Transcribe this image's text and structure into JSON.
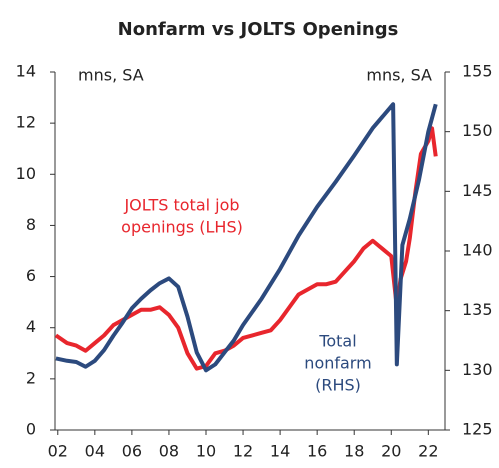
{
  "chart_data": {
    "type": "line",
    "title": "Nonfarm vs JOLTS Openings",
    "annotations": [
      {
        "text": "mns, SA",
        "axis": "y"
      },
      {
        "text": "mns, SA",
        "axis": "y2"
      },
      {
        "lines": [
          "JOLTS total job",
          "openings (LHS)"
        ],
        "color": "#e8262d"
      },
      {
        "lines": [
          "Total",
          "nonfarm",
          "(RHS)"
        ],
        "color": "#2c4a7e"
      }
    ],
    "xlim": [
      2001.85,
      2022.9
    ],
    "xticks": [
      {
        "value": 2002,
        "label": "02"
      },
      {
        "value": 2004,
        "label": "04"
      },
      {
        "value": 2006,
        "label": "06"
      },
      {
        "value": 2008,
        "label": "08"
      },
      {
        "value": 2010,
        "label": "10"
      },
      {
        "value": 2012,
        "label": "12"
      },
      {
        "value": 2014,
        "label": "14"
      },
      {
        "value": 2016,
        "label": "16"
      },
      {
        "value": 2018,
        "label": "18"
      },
      {
        "value": 2020,
        "label": "20"
      },
      {
        "value": 2022,
        "label": "22"
      }
    ],
    "ylim": [
      0,
      14
    ],
    "yticks": [
      0,
      2,
      4,
      6,
      8,
      10,
      12,
      14
    ],
    "y2lim": [
      125,
      155
    ],
    "y2ticks": [
      125,
      130,
      135,
      140,
      145,
      150,
      155
    ],
    "series": [
      {
        "name": "JOLTS total job openings",
        "color": "#e8262d",
        "axis": "y",
        "x": [
          2001.9,
          2002.5,
          2003,
          2003.5,
          2004,
          2004.5,
          2005,
          2005.5,
          2006,
          2006.5,
          2007,
          2007.5,
          2008,
          2008.5,
          2009,
          2009.5,
          2010,
          2010.5,
          2011,
          2011.5,
          2012,
          2012.5,
          2013,
          2013.5,
          2014,
          2014.5,
          2015,
          2015.5,
          2016,
          2016.5,
          2017,
          2017.5,
          2018,
          2018.5,
          2019,
          2019.5,
          2020,
          2020.3,
          2020.5,
          2020.8,
          2021,
          2021.3,
          2021.6,
          2022,
          2022.2,
          2022.4
        ],
        "values": [
          3.7,
          3.4,
          3.3,
          3.1,
          3.4,
          3.7,
          4.1,
          4.3,
          4.5,
          4.7,
          4.7,
          4.8,
          4.5,
          4.0,
          3.0,
          2.4,
          2.5,
          3.0,
          3.1,
          3.3,
          3.6,
          3.7,
          3.8,
          3.9,
          4.3,
          4.8,
          5.3,
          5.5,
          5.7,
          5.7,
          5.8,
          6.2,
          6.6,
          7.1,
          7.4,
          7.1,
          6.8,
          4.8,
          5.9,
          6.6,
          7.5,
          9.3,
          10.8,
          11.3,
          11.8,
          10.7
        ]
      },
      {
        "name": "Total nonfarm",
        "color": "#2c4a7e",
        "axis": "y2",
        "x": [
          2001.9,
          2002.5,
          2003,
          2003.5,
          2004,
          2004.5,
          2005,
          2005.5,
          2006,
          2006.5,
          2007,
          2007.5,
          2008,
          2008.5,
          2009,
          2009.5,
          2010,
          2010.5,
          2011,
          2011.5,
          2012,
          2013,
          2014,
          2015,
          2016,
          2017,
          2018,
          2019,
          2020.1,
          2020.3,
          2020.6,
          2021,
          2021.5,
          2022,
          2022.4
        ],
        "values": [
          131.0,
          130.8,
          130.7,
          130.3,
          130.8,
          131.7,
          132.9,
          134.0,
          135.2,
          136.0,
          136.7,
          137.3,
          137.7,
          137.0,
          134.5,
          131.5,
          130.0,
          130.5,
          131.5,
          132.5,
          133.8,
          136.0,
          138.5,
          141.3,
          143.7,
          145.8,
          148.0,
          150.3,
          152.3,
          130.5,
          140.5,
          142.7,
          146.0,
          150.0,
          152.3
        ]
      }
    ]
  }
}
